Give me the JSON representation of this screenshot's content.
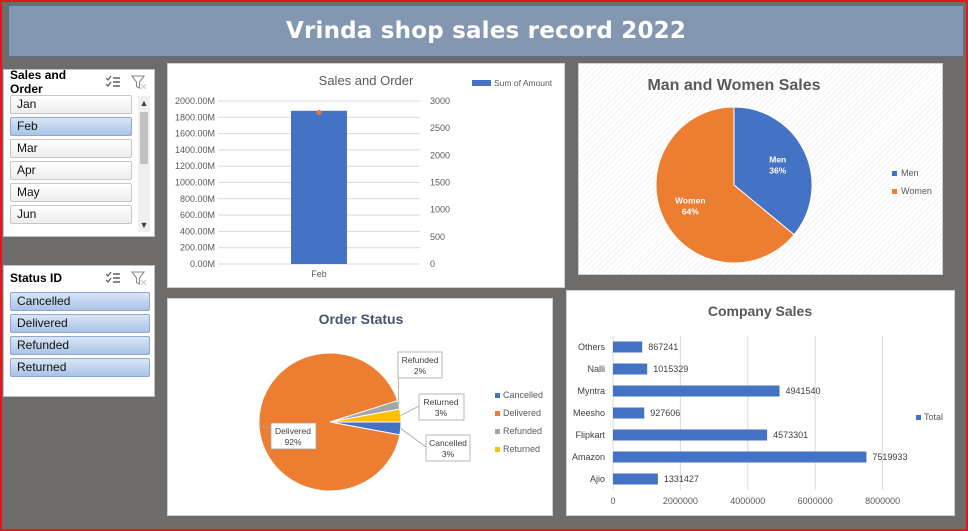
{
  "title": "Vrinda  shop sales record 2022",
  "colors": {
    "blue": "#4472c4",
    "orange": "#ed7d31",
    "gray": "#a5a5a5",
    "yellow": "#ffc000",
    "banner": "#8497b0"
  },
  "slicer_month": {
    "title": "Sales and Order",
    "icons": [
      "multi-select-icon",
      "clear-filter-icon"
    ],
    "items": [
      {
        "label": "Jan",
        "selected": false
      },
      {
        "label": "Feb",
        "selected": true
      },
      {
        "label": "Mar",
        "selected": false
      },
      {
        "label": "Apr",
        "selected": false
      },
      {
        "label": "May",
        "selected": false
      },
      {
        "label": "Jun",
        "selected": false
      }
    ]
  },
  "slicer_status": {
    "title": "Status ID",
    "icons": [
      "multi-select-icon",
      "clear-filter-icon"
    ],
    "items": [
      {
        "label": "Cancelled",
        "selected": true
      },
      {
        "label": "Delivered",
        "selected": true
      },
      {
        "label": "Refunded",
        "selected": true
      },
      {
        "label": "Returned",
        "selected": true
      }
    ]
  },
  "chart_data": [
    {
      "type": "bar",
      "title": "Sales and Order",
      "categories": [
        "Feb"
      ],
      "series": [
        {
          "name": "Sum of Amount",
          "values": [
            1880
          ],
          "axis": "left",
          "color": "#4472c4"
        },
        {
          "values": [
            2790
          ],
          "axis": "right",
          "marker": "dot",
          "color": "#ed7d31"
        }
      ],
      "ylim_left": [
        0,
        2000
      ],
      "yticks_left": [
        "0.00M",
        "200.00M",
        "400.00M",
        "600.00M",
        "800.00M",
        "1000.00M",
        "1200.00M",
        "1400.00M",
        "1600.00M",
        "1800.00M",
        "2000.00M"
      ],
      "ylim_right": [
        0,
        3000
      ],
      "yticks_right": [
        "0",
        "500",
        "1000",
        "1500",
        "2000",
        "2500",
        "3000"
      ],
      "legend": "top-right",
      "grid": true
    },
    {
      "type": "pie",
      "title": "Man and Women Sales",
      "labels": [
        "Men",
        "Women"
      ],
      "values": [
        36,
        64
      ],
      "data_labels": [
        "36%",
        "64%"
      ],
      "colors": [
        "#4472c4",
        "#ed7d31"
      ],
      "legend": "right"
    },
    {
      "type": "pie",
      "title": "Order Status",
      "labels": [
        "Cancelled",
        "Delivered",
        "Refunded",
        "Returned"
      ],
      "values": [
        3,
        92,
        2,
        3
      ],
      "data_labels": [
        "3%",
        "92%",
        "2%",
        "3%"
      ],
      "colors": [
        "#4472c4",
        "#ed7d31",
        "#a5a5a5",
        "#ffc000"
      ],
      "legend": "right"
    },
    {
      "type": "bar",
      "orientation": "horizontal",
      "title": "Company Sales",
      "categories": [
        "Others",
        "Nalli",
        "Myntra",
        "Meesho",
        "Flipkart",
        "Amazon",
        "Ajio"
      ],
      "series": [
        {
          "name": "Total",
          "values": [
            867241,
            1015329,
            4941540,
            927606,
            4573301,
            7519933,
            1331427
          ]
        }
      ],
      "xlim": [
        0,
        10000000
      ],
      "xticks": [
        "0",
        "2000000",
        "4000000",
        "6000000",
        "8000000"
      ],
      "legend": "right",
      "grid": true
    }
  ]
}
